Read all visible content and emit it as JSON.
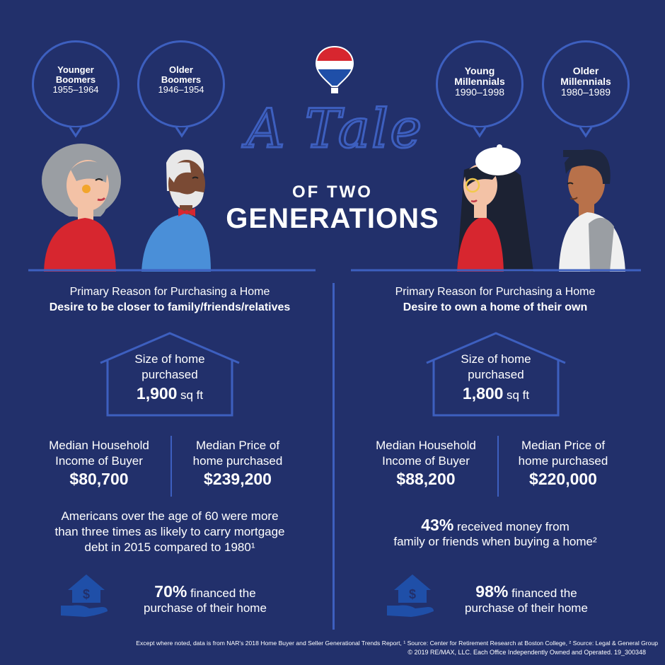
{
  "title": {
    "script": "A Tale",
    "line2": "OF TWO",
    "line3": "GENERATIONS"
  },
  "colors": {
    "background": "#22306b",
    "outline": "#3d5fbf",
    "red": "#d7262f",
    "blue": "#4a8fd8"
  },
  "left": {
    "bubbles": [
      {
        "name": "Younger\nBoomers",
        "name1": "Younger",
        "name2": "Boomers",
        "years": "1955–1964"
      },
      {
        "name1": "Older",
        "name2": "Boomers",
        "years": "1946–1954"
      }
    ],
    "reason_label": "Primary Reason for Purchasing a Home",
    "reason_value": "Desire to be closer to family/friends/relatives",
    "size_label1": "Size of home",
    "size_label2": "purchased",
    "size_value": "1,900",
    "size_unit": "sq ft",
    "income_label1": "Median Household",
    "income_label2": "Income of Buyer",
    "income_value": "$80,700",
    "price_label1": "Median Price of",
    "price_label2": "home purchased",
    "price_value": "$239,200",
    "fact_line1": "Americans over the age of 60 were more",
    "fact_line2": "than three times as likely to carry mortgage",
    "fact_line3": "debt in 2015 compared to 1980¹",
    "financed_pct": "70%",
    "financed_text1": "financed the",
    "financed_text2": "purchase of their home"
  },
  "right": {
    "bubbles": [
      {
        "name1": "Young",
        "name2": "Millennials",
        "years": "1990–1998"
      },
      {
        "name1": "Older",
        "name2": "Millennials",
        "years": "1980–1989"
      }
    ],
    "reason_label": "Primary Reason for Purchasing a Home",
    "reason_value": "Desire to own a home of their own",
    "size_label1": "Size of home",
    "size_label2": "purchased",
    "size_value": "1,800",
    "size_unit": "sq ft",
    "income_label1": "Median Household",
    "income_label2": "Income of Buyer",
    "income_value": "$88,200",
    "price_label1": "Median Price of",
    "price_label2": "home purchased",
    "price_value": "$220,000",
    "gift_pct": "43%",
    "gift_text1": "received money from",
    "gift_text2": "family or friends when buying a home²",
    "financed_pct": "98%",
    "financed_text1": "financed the",
    "financed_text2": "purchase of their home"
  },
  "footer": {
    "line1": "Except where noted, data is from NAR's 2018 Home Buyer and Seller Generational Trends Report, ¹ Source: Center for Retirement Research at Boston College, ² Source: Legal & General Group",
    "line2": "© 2019 RE/MAX, LLC. Each Office Independently Owned and Operated. 19_300348"
  }
}
